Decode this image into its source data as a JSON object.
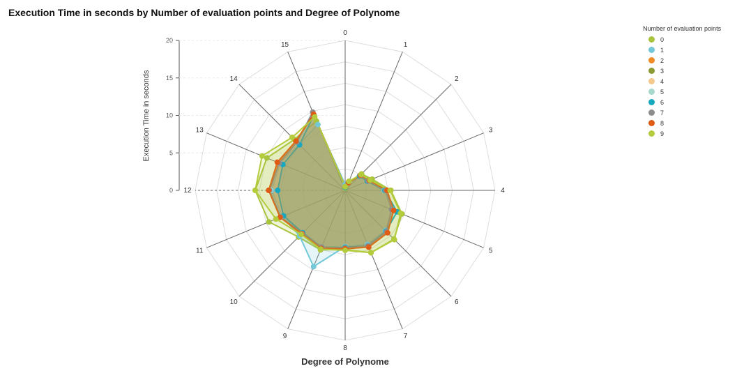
{
  "chart_data": {
    "type": "radar",
    "title": "Execution Time in seconds by Number of evaluation points and Degree of Polynome",
    "xlabel": "Degree of Polynome",
    "ylabel": "Execution Time in seconds",
    "categories": [
      "0",
      "1",
      "2",
      "3",
      "4",
      "5",
      "6",
      "7",
      "8",
      "9",
      "10",
      "11",
      "12",
      "13",
      "14",
      "15"
    ],
    "ylim": [
      0,
      20
    ],
    "yticks": [
      "0",
      "5",
      "10",
      "15",
      "20"
    ],
    "grid": true,
    "legend_title": "Number of evaluation points",
    "legend_position": "top-right",
    "series": [
      {
        "name": "0",
        "color": "#a8c43c",
        "values": [
          0.3,
          1.3,
          3.1,
          3.9,
          6.1,
          8.2,
          9.2,
          9.0,
          7.9,
          8.6,
          8.8,
          11.0,
          12.0,
          11.3,
          9.6,
          10.0
        ]
      },
      {
        "name": "1",
        "color": "#72c8d8",
        "values": [
          0.8,
          1.2,
          2.8,
          3.2,
          5.2,
          6.8,
          7.6,
          7.8,
          7.5,
          11.0,
          8.6,
          9.1,
          9.8,
          9.4,
          8.7,
          9.5
        ]
      },
      {
        "name": "2",
        "color": "#f08a24",
        "values": [
          0.5,
          1.2,
          3.0,
          3.5,
          5.5,
          7.0,
          8.0,
          8.2,
          7.6,
          8.4,
          8.0,
          9.3,
          10.2,
          9.7,
          9.1,
          10.9
        ]
      },
      {
        "name": "3",
        "color": "#8c9a34",
        "values": [
          0.5,
          1.1,
          2.8,
          3.4,
          5.4,
          6.8,
          7.8,
          8.0,
          7.6,
          8.2,
          8.0,
          9.2,
          10.0,
          9.5,
          9.0,
          10.8
        ]
      },
      {
        "name": "4",
        "color": "#f5c88c",
        "values": [
          0.5,
          1.1,
          2.8,
          3.4,
          5.4,
          6.8,
          7.8,
          8.0,
          7.6,
          8.2,
          8.0,
          9.2,
          10.0,
          9.5,
          9.0,
          10.8
        ]
      },
      {
        "name": "5",
        "color": "#a8d8cc",
        "values": [
          0.5,
          1.1,
          2.8,
          3.3,
          5.3,
          6.8,
          7.8,
          8.0,
          7.6,
          8.2,
          8.0,
          9.2,
          10.0,
          9.5,
          9.0,
          10.8
        ]
      },
      {
        "name": "6",
        "color": "#17a8c0",
        "values": [
          0.4,
          1.1,
          2.7,
          3.2,
          5.3,
          7.5,
          7.7,
          8.0,
          7.6,
          8.2,
          8.0,
          8.9,
          9.0,
          9.0,
          8.6,
          10.9
        ]
      },
      {
        "name": "7",
        "color": "#8c8c8c",
        "values": [
          0.5,
          1.1,
          2.8,
          3.3,
          5.4,
          6.7,
          7.8,
          8.0,
          7.7,
          8.2,
          8.1,
          9.3,
          10.1,
          9.5,
          9.1,
          11.3
        ]
      },
      {
        "name": "8",
        "color": "#e05c14",
        "values": [
          0.5,
          1.1,
          2.9,
          3.5,
          5.6,
          7.0,
          8.0,
          8.2,
          7.8,
          8.4,
          8.2,
          9.4,
          10.2,
          9.8,
          9.3,
          11.0
        ]
      },
      {
        "name": "9",
        "color": "#b4cc3c",
        "values": [
          0.5,
          1.3,
          3.0,
          3.6,
          6.0,
          8.0,
          9.3,
          9.0,
          8.0,
          8.5,
          8.3,
          10.0,
          12.0,
          12.0,
          10.0,
          10.6
        ]
      }
    ]
  }
}
